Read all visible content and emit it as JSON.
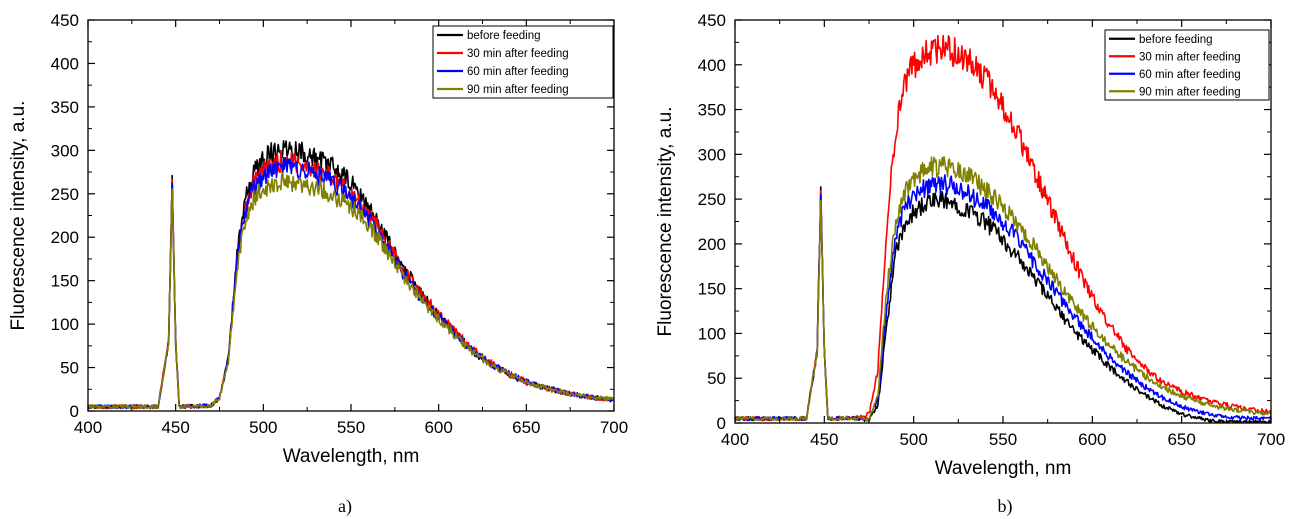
{
  "chart_data": [
    {
      "type": "line",
      "panel_label": "a)",
      "xlabel": "Wavelength, nm",
      "ylabel": "Fluorescence intensity, a.u.",
      "xlim": [
        400,
        700
      ],
      "ylim": [
        0,
        450
      ],
      "xticks": [
        400,
        450,
        500,
        550,
        600,
        650,
        700
      ],
      "yticks": [
        0,
        50,
        100,
        150,
        200,
        250,
        300,
        350,
        400,
        450
      ],
      "legend_position": "top-right",
      "laser_peak": {
        "x": 448,
        "y": 260
      },
      "x": [
        400,
        440,
        446,
        448,
        450,
        452,
        470,
        475,
        480,
        485,
        490,
        495,
        500,
        505,
        510,
        515,
        520,
        525,
        530,
        540,
        550,
        560,
        570,
        580,
        590,
        600,
        610,
        620,
        630,
        640,
        650,
        660,
        670,
        680,
        690,
        700
      ],
      "series": [
        {
          "name": "before feeding",
          "color": "#000000",
          "values": [
            5,
            5,
            80,
            260,
            80,
            5,
            6,
            15,
            60,
            180,
            245,
            275,
            292,
            298,
            302,
            303,
            300,
            296,
            290,
            280,
            262,
            235,
            200,
            165,
            135,
            110,
            88,
            68,
            53,
            42,
            33,
            27,
            22,
            18,
            15,
            13
          ]
        },
        {
          "name": "30 min after feeding",
          "color": "#ff0000",
          "values": [
            5,
            5,
            80,
            260,
            80,
            5,
            6,
            15,
            60,
            175,
            235,
            262,
            275,
            282,
            287,
            288,
            286,
            283,
            278,
            268,
            250,
            228,
            195,
            162,
            135,
            112,
            90,
            70,
            55,
            43,
            34,
            27,
            22,
            18,
            15,
            13
          ]
        },
        {
          "name": "60 min after feeding",
          "color": "#0000ff",
          "values": [
            5,
            5,
            80,
            260,
            80,
            5,
            6,
            15,
            60,
            175,
            232,
            258,
            270,
            276,
            280,
            281,
            279,
            276,
            272,
            262,
            245,
            222,
            190,
            158,
            130,
            108,
            87,
            68,
            54,
            43,
            34,
            28,
            22,
            18,
            15,
            13
          ]
        },
        {
          "name": "90 min after feeding",
          "color": "#808000",
          "values": [
            5,
            5,
            80,
            258,
            80,
            5,
            6,
            15,
            55,
            165,
            222,
            245,
            256,
            260,
            263,
            264,
            262,
            260,
            257,
            248,
            235,
            215,
            185,
            155,
            128,
            106,
            86,
            67,
            53,
            42,
            33,
            27,
            22,
            18,
            15,
            13
          ]
        }
      ]
    },
    {
      "type": "line",
      "panel_label": "b)",
      "xlabel": "Wavelength, nm",
      "ylabel": "Fluorescence intensity, a.u.",
      "xlim": [
        400,
        700
      ],
      "ylim": [
        0,
        450
      ],
      "xticks": [
        400,
        450,
        500,
        550,
        600,
        650,
        700
      ],
      "yticks": [
        0,
        50,
        100,
        150,
        200,
        250,
        300,
        350,
        400,
        450
      ],
      "legend_position": "top-right",
      "laser_peak": {
        "x": 448,
        "y": 260
      },
      "x": [
        400,
        440,
        446,
        448,
        450,
        452,
        470,
        475,
        480,
        485,
        490,
        495,
        500,
        505,
        510,
        515,
        520,
        525,
        530,
        540,
        550,
        560,
        570,
        580,
        590,
        600,
        610,
        620,
        630,
        640,
        650,
        660,
        670,
        680,
        690,
        700
      ],
      "series": [
        {
          "name": "before feeding",
          "color": "#000000",
          "values": [
            5,
            5,
            80,
            260,
            80,
            5,
            5,
            3,
            20,
            110,
            190,
            220,
            235,
            243,
            247,
            248,
            246,
            243,
            238,
            225,
            205,
            180,
            155,
            128,
            102,
            82,
            62,
            45,
            30,
            18,
            10,
            5,
            2,
            1,
            1,
            1
          ]
        },
        {
          "name": "30 min after feeding",
          "color": "#ff0000",
          "values": [
            5,
            5,
            80,
            260,
            80,
            5,
            6,
            10,
            60,
            220,
            330,
            380,
            400,
            410,
            415,
            418,
            416,
            412,
            405,
            385,
            355,
            315,
            270,
            225,
            180,
            140,
            108,
            80,
            60,
            45,
            35,
            28,
            22,
            18,
            15,
            12
          ]
        },
        {
          "name": "60 min after feeding",
          "color": "#0000ff",
          "values": [
            5,
            5,
            80,
            260,
            80,
            5,
            5,
            4,
            25,
            130,
            210,
            240,
            255,
            262,
            266,
            267,
            265,
            262,
            256,
            243,
            225,
            200,
            172,
            145,
            118,
            95,
            73,
            55,
            40,
            28,
            18,
            12,
            8,
            6,
            5,
            5
          ]
        },
        {
          "name": "90 min after feeding",
          "color": "#808000",
          "values": [
            5,
            5,
            80,
            258,
            80,
            5,
            5,
            4,
            30,
            150,
            225,
            258,
            272,
            280,
            285,
            287,
            285,
            282,
            276,
            262,
            242,
            218,
            190,
            160,
            132,
            108,
            86,
            67,
            52,
            40,
            30,
            23,
            18,
            15,
            12,
            10
          ]
        }
      ]
    }
  ]
}
